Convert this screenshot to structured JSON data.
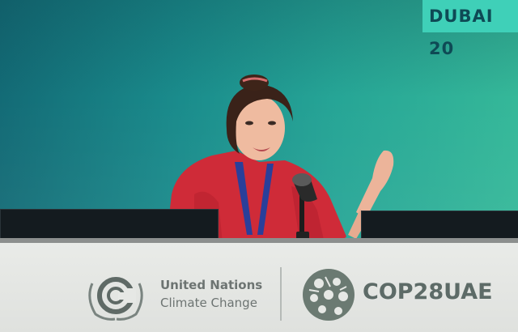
{
  "banner": {
    "location": "DUBAI 20"
  },
  "desk_sign": {
    "un_line1": "United Nations",
    "un_line2": "Climate Change",
    "cop_text": "COP28UAE"
  },
  "icons": {
    "unfccc_logo": "unfccc-laurel-c-logo",
    "cop_emblem": "cop28-circular-emblem"
  },
  "colors": {
    "backdrop": "#1a8c8c",
    "location_tag": "#3fd0b8",
    "shirt": "#d32d3a",
    "desk": "#e6e8e5"
  }
}
